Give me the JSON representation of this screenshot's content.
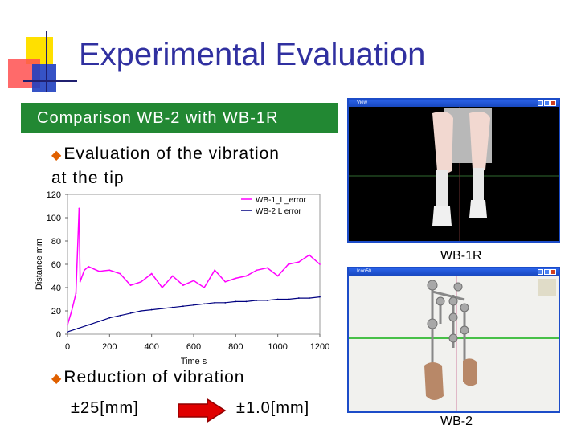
{
  "title": "Experimental Evaluation",
  "subtitle": "Comparison WB-2 with WB-1R",
  "bullets": {
    "evaluation": "Evaluation of the vibration at the tip",
    "reduction": "Reduction of vibration",
    "marker": "◆"
  },
  "values": {
    "before": "±25[mm]",
    "after": "±1.0[mm]"
  },
  "windows": {
    "wb1r": {
      "title": "View",
      "caption": "WB-1R"
    },
    "wb2": {
      "title": "Icon50",
      "caption": "WB-2"
    }
  },
  "colors": {
    "title": "#3030a0",
    "subtitle_bg": "#228833",
    "bullet_marker": "#e06000",
    "arrow": "#e00000"
  },
  "chart_data": {
    "type": "line",
    "xlabel": "Time s",
    "ylabel": "Distance mm",
    "xlim": [
      0,
      1200
    ],
    "ylim": [
      0,
      120
    ],
    "xticks": [
      "0",
      "200",
      "400",
      "600",
      "800",
      "1000",
      "1200"
    ],
    "yticks": [
      "0",
      "20",
      "40",
      "60",
      "80",
      "100",
      "120"
    ],
    "legend_position": "top-right",
    "series": [
      {
        "name": "WB-1_L_error",
        "color": "#ff00ff",
        "x": [
          0,
          20,
          40,
          55,
          60,
          80,
          100,
          150,
          200,
          250,
          300,
          350,
          400,
          450,
          500,
          550,
          600,
          650,
          700,
          750,
          800,
          850,
          900,
          950,
          1000,
          1050,
          1100,
          1150,
          1200
        ],
        "y": [
          8,
          20,
          35,
          108,
          45,
          55,
          58,
          54,
          55,
          52,
          42,
          45,
          52,
          40,
          50,
          42,
          46,
          40,
          55,
          45,
          48,
          50,
          55,
          57,
          50,
          60,
          62,
          68,
          60
        ]
      },
      {
        "name": "WB-2 L error",
        "color": "#000080",
        "x": [
          0,
          50,
          100,
          150,
          200,
          250,
          300,
          350,
          400,
          450,
          500,
          550,
          600,
          650,
          700,
          750,
          800,
          850,
          900,
          950,
          1000,
          1050,
          1100,
          1150,
          1200
        ],
        "y": [
          2,
          5,
          8,
          11,
          14,
          16,
          18,
          20,
          21,
          22,
          23,
          24,
          25,
          26,
          27,
          27,
          28,
          28,
          29,
          29,
          30,
          30,
          31,
          31,
          32
        ]
      }
    ]
  }
}
